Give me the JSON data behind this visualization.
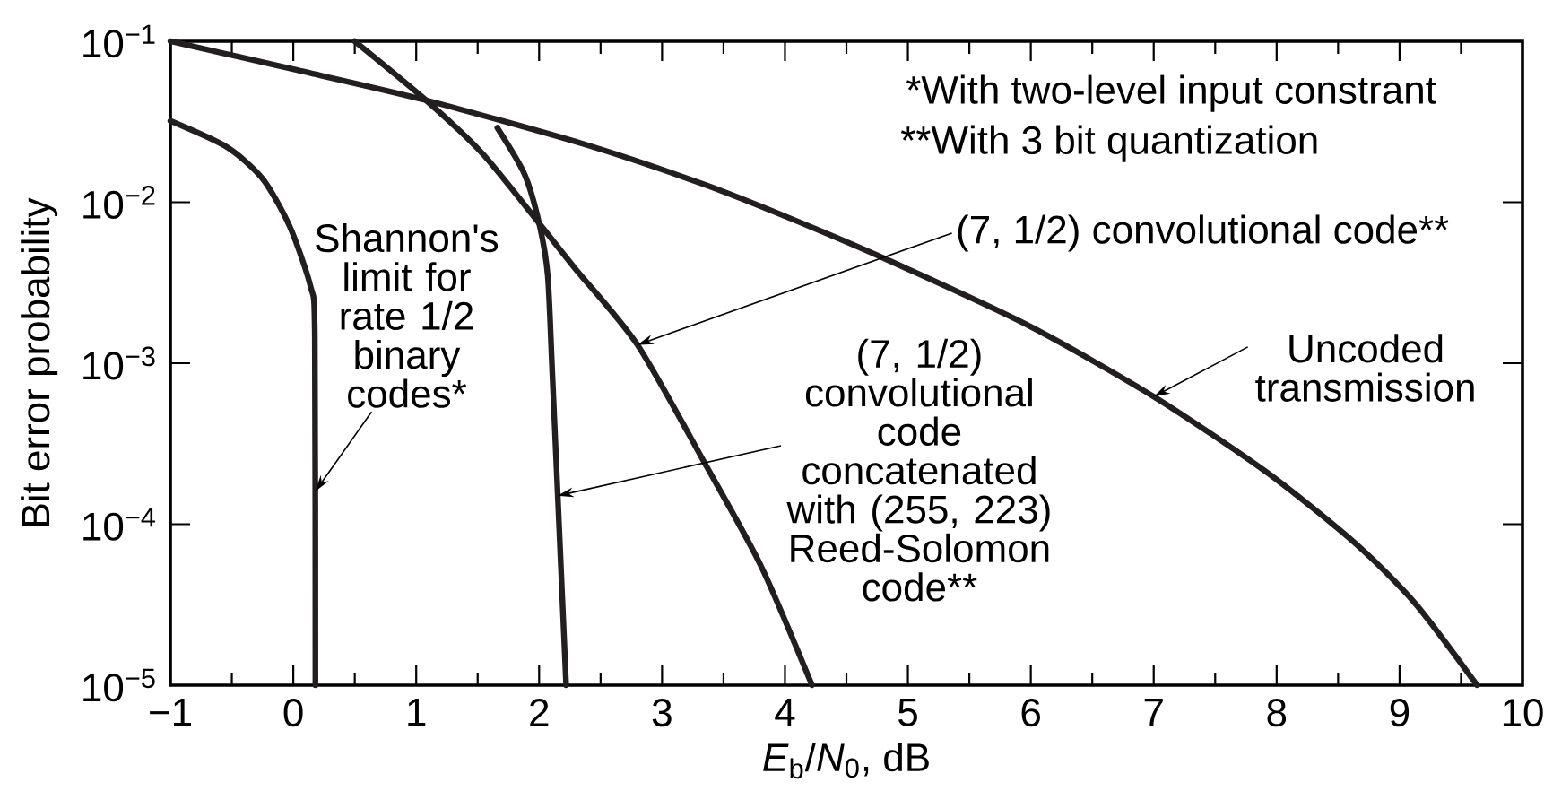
{
  "chart_data": {
    "type": "line",
    "xlabel": "*E*$_{b}$/*N*$_{0}$, dB",
    "ylabel": "Bit error probability",
    "log": "y",
    "xlim": [
      -1,
      10
    ],
    "ylim": [
      1e-05,
      0.1
    ],
    "xticks": [
      {
        "value": -1,
        "label": "−1"
      },
      {
        "value": -0.5,
        "label": null
      },
      0,
      {
        "value": 0.5,
        "label": null
      },
      1,
      {
        "value": 1.5,
        "label": null
      },
      2,
      {
        "value": 2.5,
        "label": null
      },
      3,
      {
        "value": 3.5,
        "label": null
      },
      4,
      {
        "value": 4.5,
        "label": null
      },
      5,
      {
        "value": 5.5,
        "label": null
      },
      6,
      {
        "value": 6.5,
        "label": null
      },
      7,
      {
        "value": 7.5,
        "label": null
      },
      8,
      {
        "value": 8.5,
        "label": null
      },
      9,
      {
        "value": 9.5,
        "label": null
      },
      10
    ],
    "yticks": [
      {
        "value": 1e-05,
        "label": "10$^{−5}$"
      },
      {
        "value": 0.0001,
        "label": "10$^{−4}$"
      },
      {
        "value": 0.001,
        "label": "10$^{−3}$"
      },
      {
        "value": 0.01,
        "label": "10$^{−2}$"
      },
      {
        "value": 0.1,
        "label": "10$^{−1}$"
      }
    ],
    "marker": "none",
    "line_style": "solid",
    "series": [
      {
        "color": "#231f20",
        "x": [
          -1,
          -0.54,
          -0.25,
          -0.03,
          0.14,
          0.175,
          0.18
        ],
        "values": [
          0.032,
          0.022,
          0.014,
          0.0071,
          0.003,
          0.0015,
          1e-05
        ]
      },
      {
        "color": "#231f20",
        "x": [
          1.66,
          1.88,
          2.0,
          2.07,
          2.11,
          2.22
        ],
        "values": [
          0.029,
          0.015,
          0.0074,
          0.0035,
          0.00078,
          1e-05
        ]
      },
      {
        "color": "#231f20",
        "x": [
          0.5,
          1.08,
          1.54,
          2.0,
          2.29,
          2.8,
          3.36,
          3.81,
          4.22
        ],
        "values": [
          0.1,
          0.043,
          0.02,
          0.0074,
          0.0039,
          0.0013,
          0.00023,
          5.4e-05,
          1e-05
        ]
      },
      {
        "color": "#231f20",
        "x": [
          -1,
          0,
          1.08,
          2.36,
          3.33,
          4.05,
          4.83,
          5.99,
          7.0,
          7.92,
          8.64,
          9.13,
          9.63
        ],
        "values": [
          0.1,
          0.067,
          0.043,
          0.023,
          0.013,
          0.0079,
          0.0044,
          0.0017,
          0.00062,
          0.00021,
          7.6e-05,
          3.2e-05,
          1e-05
        ]
      }
    ],
    "annotations": [
      "*With two-level input constrant",
      "**With 3 bit quantization",
      {
        "text": "Shannon's limit for rate 1/2 binary codes*",
        "x": 0.18,
        "y": 0.00016
      },
      {
        "text": "(7, 1/2) convolutional code**",
        "x": 2.8,
        "y": 0.0013
      },
      {
        "text": "(7, 1/2) convolutional code concatenated with (255, 223) Reed-Solomon code**",
        "x": 2.15,
        "y": 0.00015
      },
      {
        "text": "Uncoded transmission",
        "x": 7.0,
        "y": 0.00062
      }
    ]
  }
}
